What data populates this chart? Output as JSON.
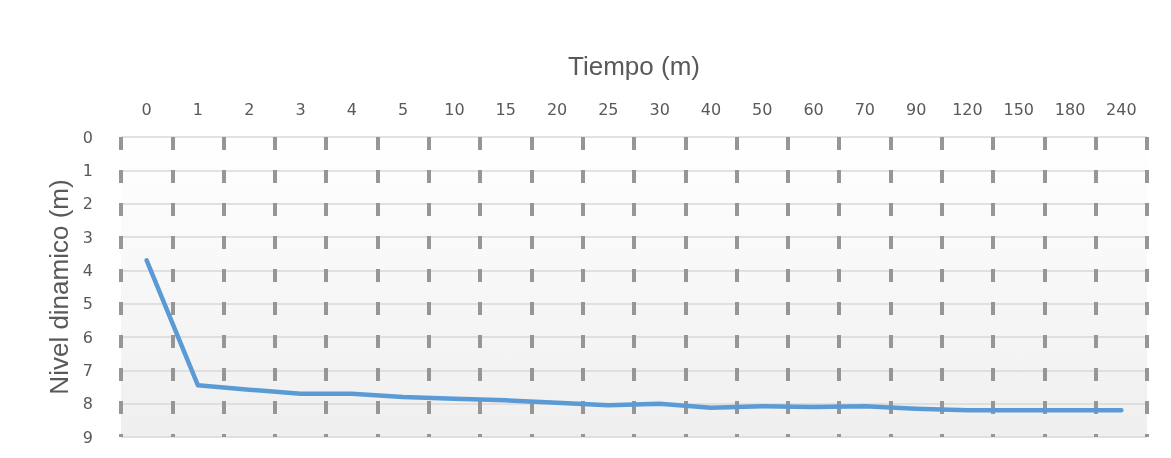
{
  "chart_data": {
    "type": "line",
    "xlabel": "Tiempo (m)",
    "ylabel": "Nivel dinamico (m)",
    "categories": [
      "0",
      "1",
      "2",
      "3",
      "4",
      "5",
      "10",
      "15",
      "20",
      "25",
      "30",
      "40",
      "50",
      "60",
      "70",
      "90",
      "120",
      "150",
      "180",
      "240"
    ],
    "series": [
      {
        "color": "#5b9bd5",
        "values": [
          3.7,
          7.45,
          7.58,
          7.7,
          7.7,
          7.8,
          7.85,
          7.9,
          7.97,
          8.05,
          8.0,
          8.12,
          8.08,
          8.1,
          8.08,
          8.15,
          8.2,
          8.2,
          8.2,
          8.2
        ]
      }
    ],
    "ylim": [
      9,
      0
    ],
    "yticks": [
      0,
      1,
      2,
      3,
      4,
      5,
      6,
      7,
      8,
      9
    ],
    "grid": true,
    "marker": "none",
    "line_style": "solid"
  }
}
